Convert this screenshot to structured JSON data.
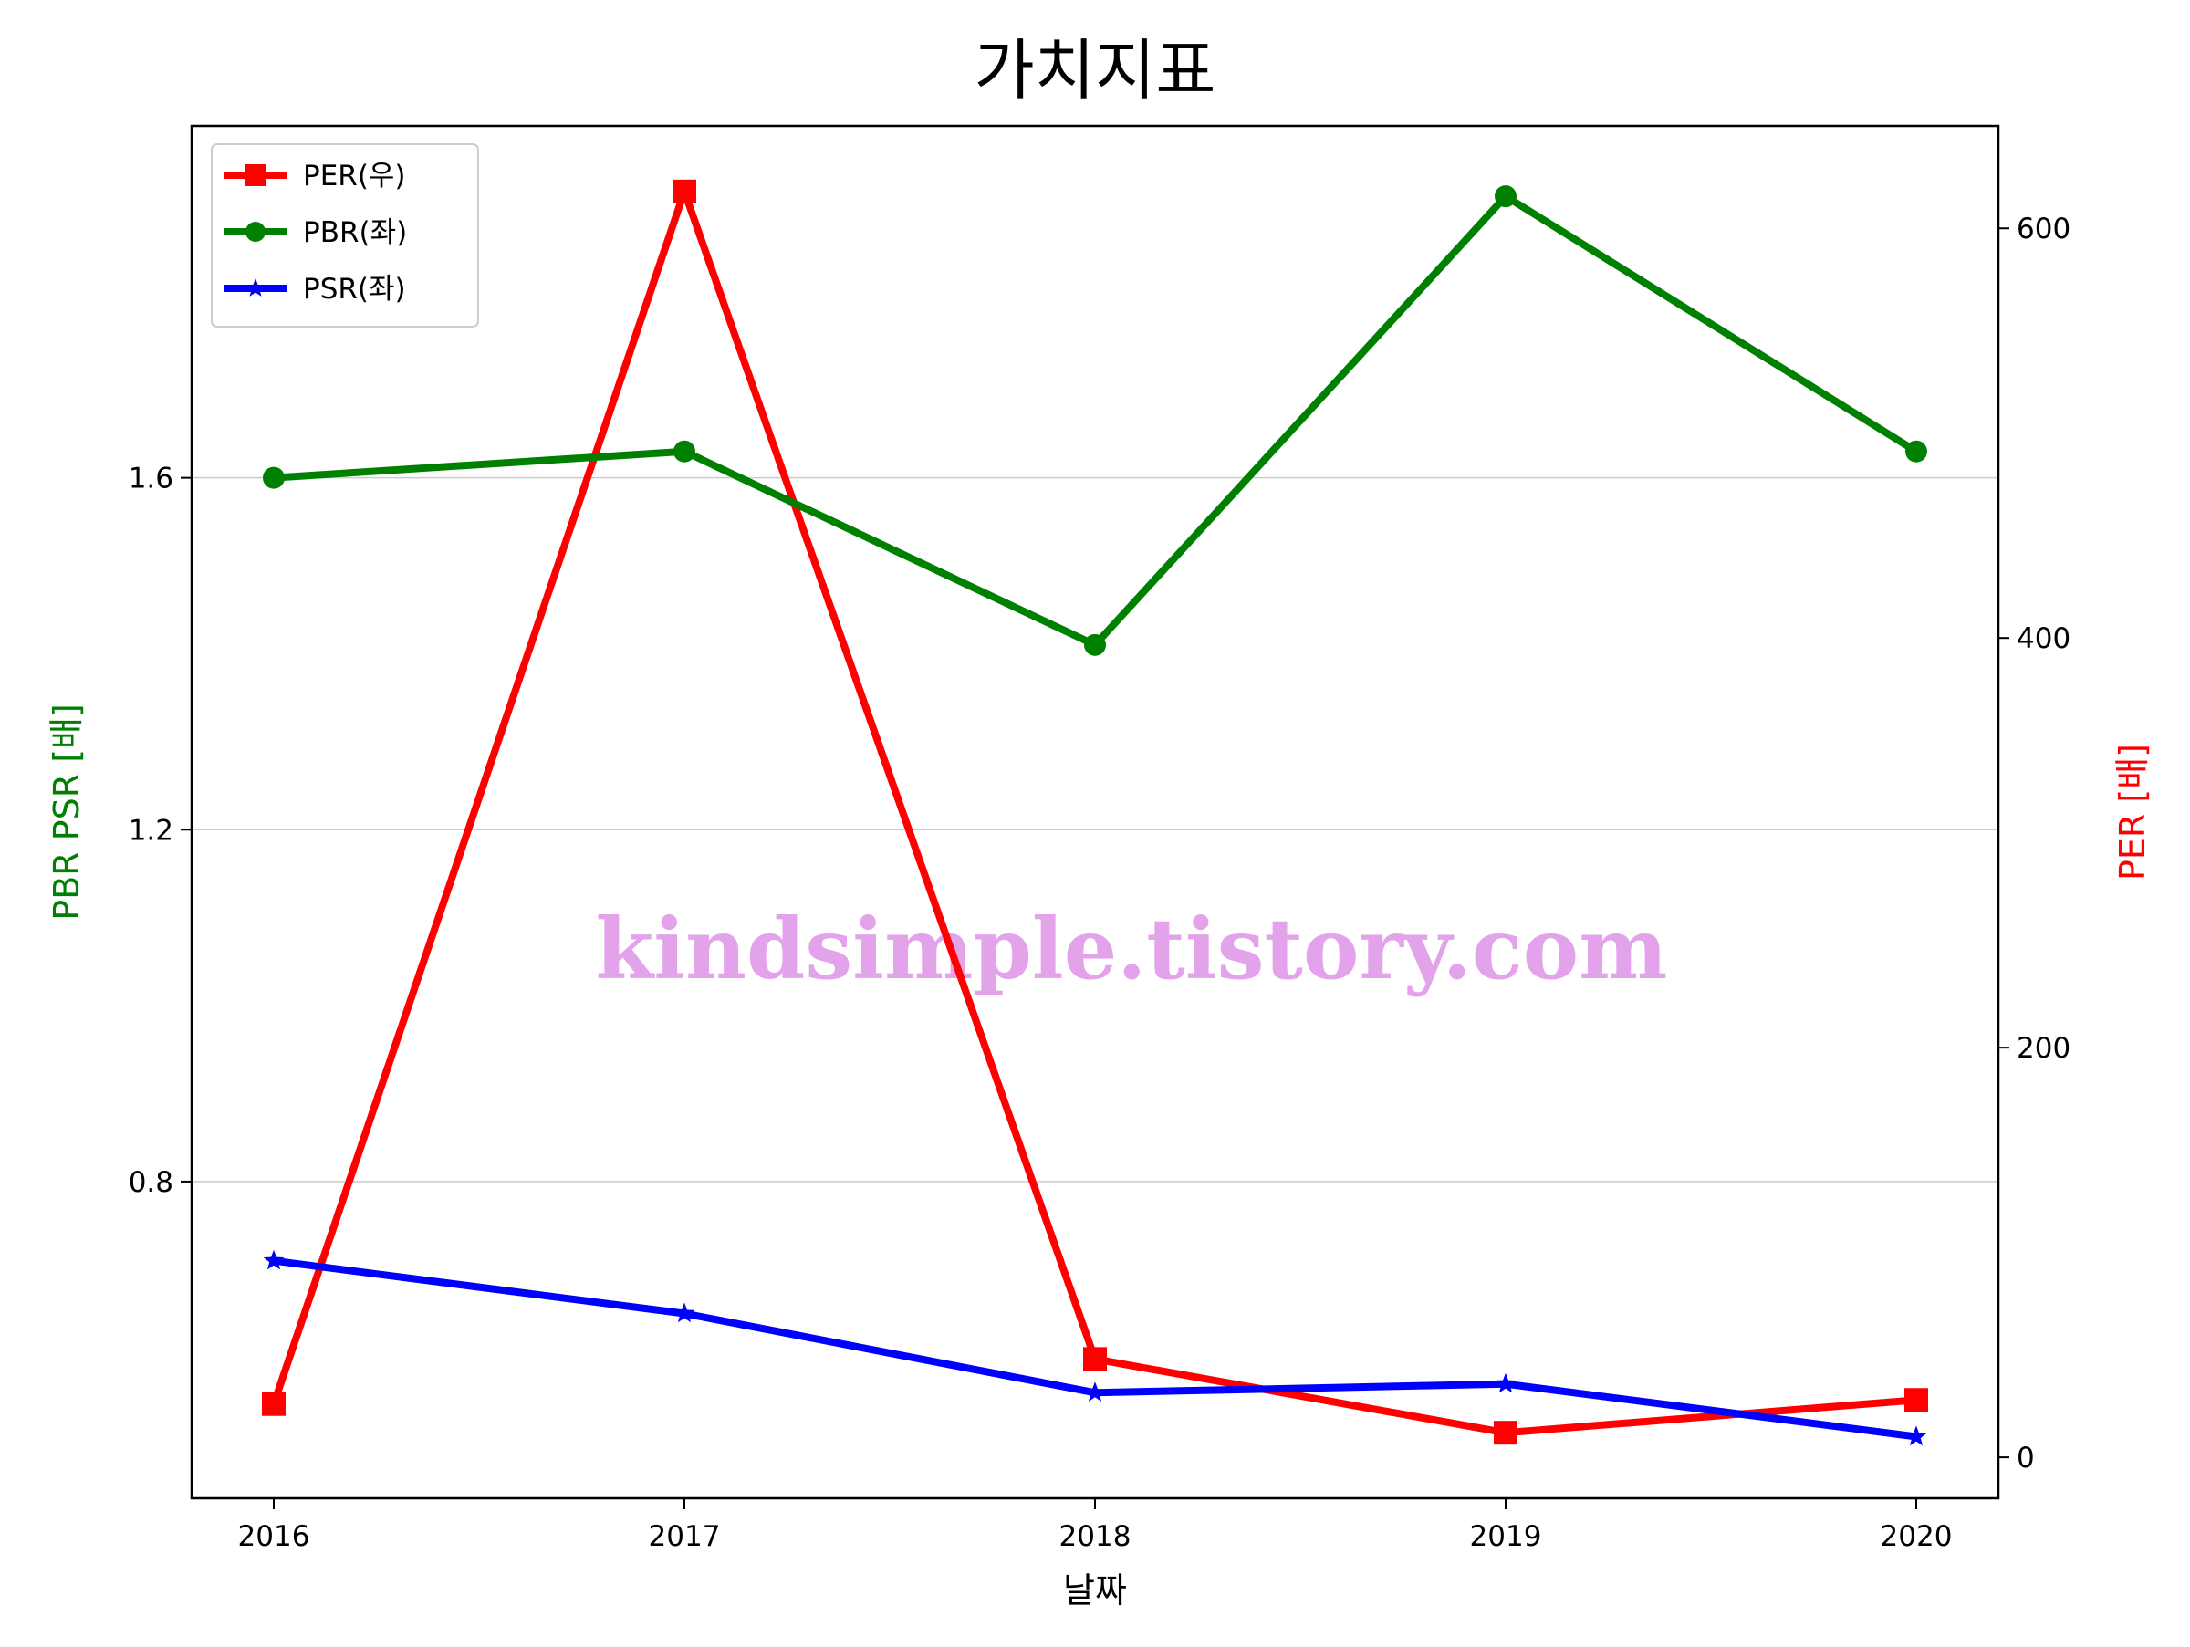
{
  "chart_data": {
    "type": "line",
    "title": "가치지표",
    "xlabel": "날짜",
    "ylabel_left": "PBR PSR [배]",
    "ylabel_right": "PER [배]",
    "x": [
      "2016",
      "2017",
      "2018",
      "2019",
      "2020"
    ],
    "y_left_ticks": [
      "0.8",
      "1.2",
      "1.6"
    ],
    "y_right_ticks": [
      "0",
      "200",
      "400",
      "600"
    ],
    "ylim_left": [
      0.44,
      2.0
    ],
    "ylim_right": [
      -20,
      650
    ],
    "grid": "horizontal",
    "legend_position": "top-left",
    "series": [
      {
        "name": "PER(우)",
        "axis": "right",
        "marker": "square",
        "color": "#ff0000",
        "values": [
          26,
          618,
          48,
          12,
          28
        ]
      },
      {
        "name": "PBR(좌)",
        "axis": "left",
        "marker": "circle",
        "color": "#008000",
        "values": [
          1.6,
          1.63,
          1.41,
          1.92,
          1.63
        ]
      },
      {
        "name": "PSR(좌)",
        "axis": "left",
        "marker": "star",
        "color": "#0000ff",
        "values": [
          0.71,
          0.65,
          0.56,
          0.57,
          0.51
        ]
      }
    ],
    "watermark": "kindsimple.tistory.com",
    "colors": {
      "left_axis_label": "#008000",
      "right_axis_label": "#ff0000",
      "watermark": "#e2a3ea"
    }
  }
}
